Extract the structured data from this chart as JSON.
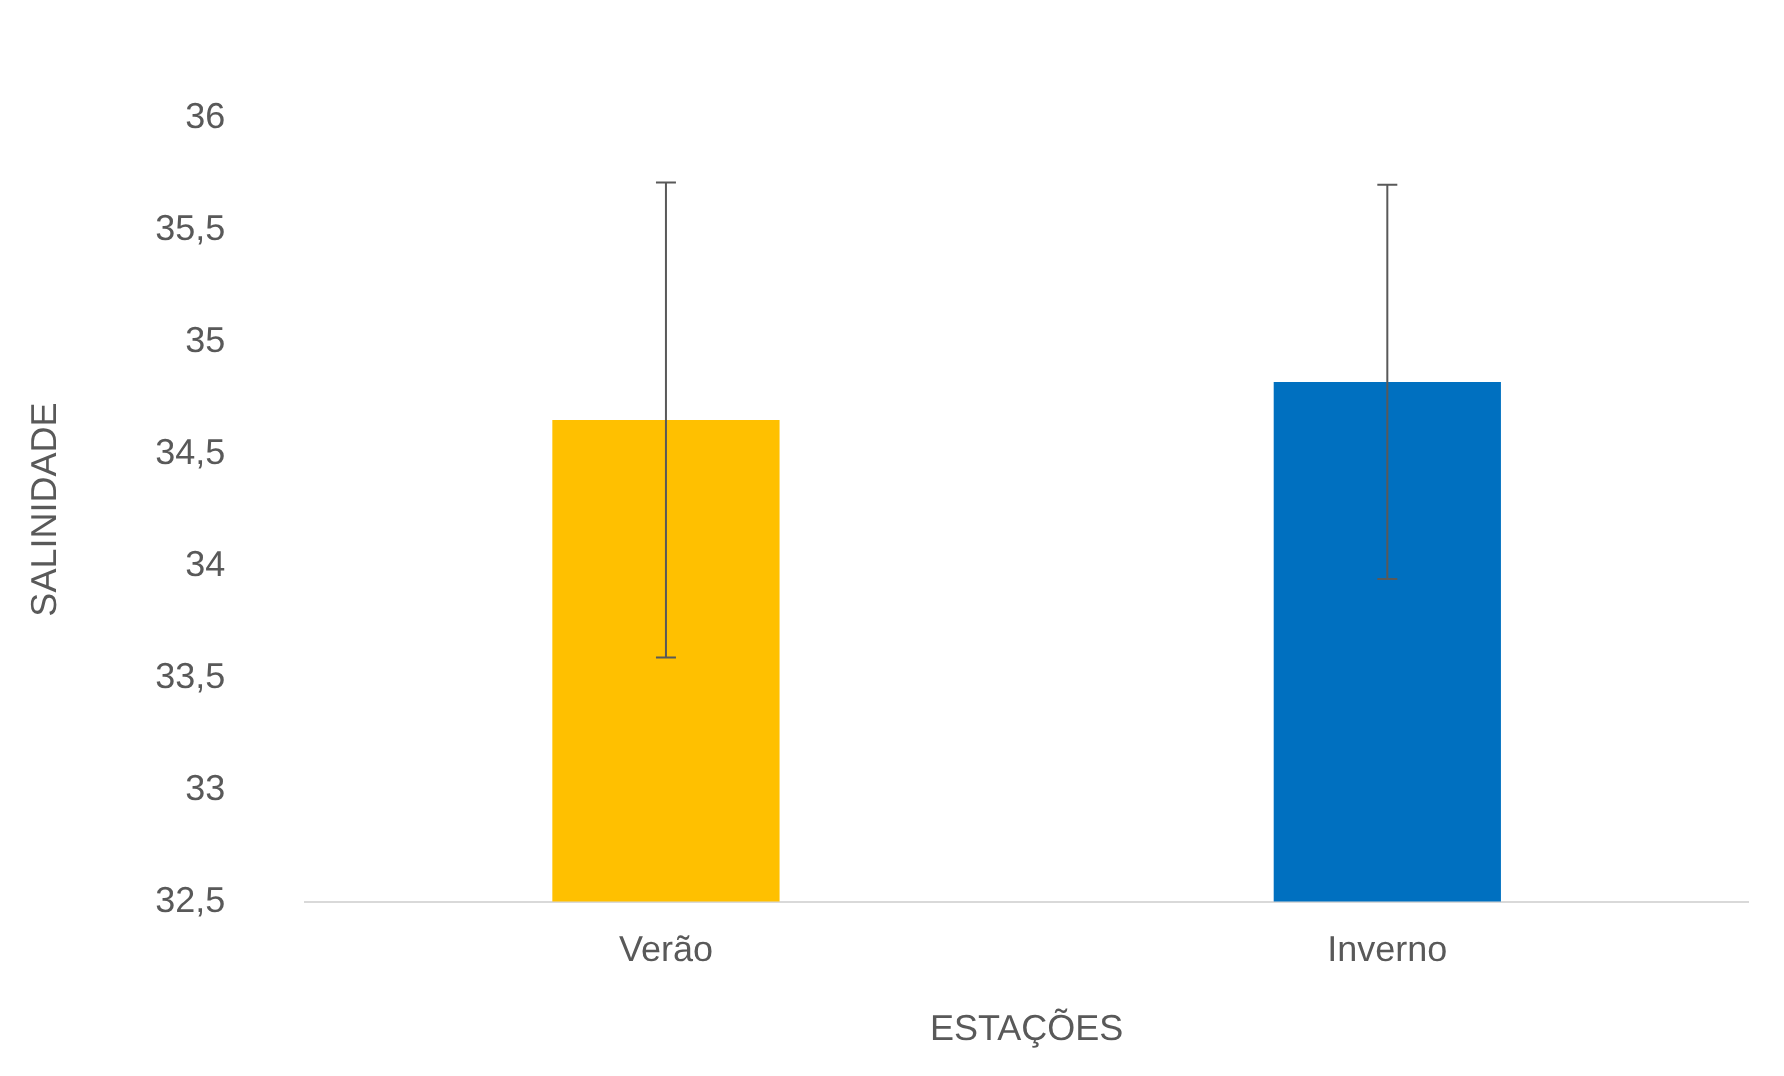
{
  "chart_data": {
    "type": "bar",
    "xlabel": "ESTAÇÕES",
    "ylabel": "SALINIDADE",
    "categories": [
      "Verão",
      "Inverno"
    ],
    "values": [
      34.65,
      34.82
    ],
    "colors": [
      "#ffc000",
      "#0070c0"
    ],
    "errors": [
      1.06,
      0.88
    ],
    "ylim": [
      32.5,
      36
    ],
    "yticks": [
      {
        "value": 32.5,
        "label": "32,5"
      },
      33,
      {
        "value": 33.5,
        "label": "33,5"
      },
      34,
      {
        "value": 34.5,
        "label": "34,5"
      },
      35,
      {
        "value": 35.5,
        "label": "35,5"
      },
      36
    ],
    "grid": false,
    "legend": false
  }
}
